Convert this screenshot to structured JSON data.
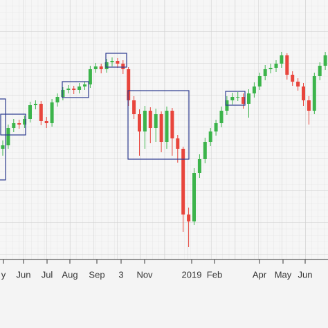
{
  "chart_data": {
    "type": "candlestick",
    "x_labels": [
      "y",
      "Jun",
      "Jul",
      "Aug",
      "Sep",
      "3",
      "Nov",
      "2019",
      "Feb",
      "Apr",
      "May",
      "Jun"
    ],
    "up_color": "#3cb44b",
    "down_color": "#e8453c",
    "ylim": [
      0,
      375
    ],
    "grid": true,
    "open": [
      160,
      165,
      190,
      197,
      195,
      203,
      223,
      225,
      200,
      197,
      227,
      235,
      245,
      247,
      245,
      250,
      253,
      275,
      279,
      275,
      285,
      287,
      283,
      275,
      230,
      210,
      185,
      215,
      190,
      210,
      170,
      215,
      175,
      160,
      65,
      55,
      125,
      145,
      170,
      185,
      197,
      215,
      230,
      235,
      235,
      225,
      240,
      250,
      265,
      275,
      277,
      283,
      295,
      267,
      257,
      250,
      230,
      215,
      265,
      280
    ],
    "high": [
      172,
      195,
      203,
      202,
      208,
      228,
      230,
      229,
      206,
      232,
      240,
      249,
      252,
      251,
      255,
      257,
      280,
      284,
      283,
      290,
      292,
      291,
      288,
      278,
      236,
      217,
      222,
      220,
      218,
      214,
      221,
      219,
      180,
      163,
      75,
      132,
      152,
      176,
      190,
      202,
      221,
      236,
      241,
      242,
      240,
      246,
      256,
      270,
      281,
      283,
      288,
      300,
      298,
      272,
      262,
      255,
      236,
      270,
      285,
      300
    ],
    "low": [
      150,
      160,
      184,
      189,
      190,
      198,
      217,
      194,
      190,
      192,
      221,
      230,
      240,
      239,
      240,
      245,
      248,
      270,
      269,
      270,
      279,
      277,
      268,
      222,
      203,
      150,
      160,
      168,
      170,
      155,
      160,
      150,
      140,
      40,
      18,
      50,
      118,
      139,
      164,
      179,
      191,
      209,
      224,
      229,
      218,
      205,
      234,
      245,
      259,
      269,
      271,
      277,
      260,
      251,
      244,
      222,
      195,
      210,
      259,
      274
    ],
    "close": [
      165,
      190,
      197,
      195,
      203,
      223,
      225,
      200,
      197,
      227,
      235,
      245,
      247,
      245,
      250,
      253,
      275,
      279,
      275,
      285,
      287,
      283,
      275,
      230,
      210,
      185,
      215,
      190,
      210,
      170,
      215,
      175,
      160,
      65,
      55,
      125,
      145,
      170,
      185,
      197,
      215,
      230,
      235,
      235,
      225,
      240,
      250,
      265,
      275,
      277,
      283,
      295,
      267,
      257,
      250,
      230,
      215,
      265,
      280,
      295
    ]
  }
}
